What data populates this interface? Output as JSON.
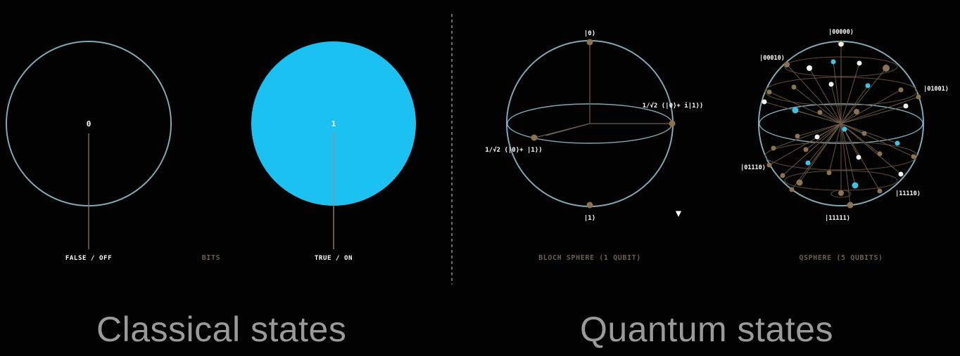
{
  "colors": {
    "background": "#020202",
    "circle_outline": "#7fa9b3",
    "bit_fill": "#1bc2f1",
    "stem": "#8a7a66",
    "node_brown": "#8b7253",
    "node_white": "#f2f2f2",
    "node_cyan": "#3bc4e6",
    "muted_label": "#6b5d4f",
    "caption": "#9a9a9a"
  },
  "classical": {
    "caption": "Classical states",
    "section_label": "BITS",
    "bit_off": {
      "value": "0",
      "label": "FALSE / OFF"
    },
    "bit_on": {
      "value": "1",
      "label": "TRUE / ON"
    }
  },
  "quantum": {
    "caption": "Quantum states",
    "bloch": {
      "section_label": "BLOCH SPHERE (1 QUBIT)",
      "top_ket": "|0⟩",
      "bottom_ket": "|1⟩",
      "right_state": "1/√2 (|0⟩+ i|1⟩)",
      "left_state": "1/√2 (|0⟩+ |1⟩)"
    },
    "qsphere": {
      "section_label": "QSPHERE (5 QUBITS)",
      "kets": [
        "|00000⟩",
        "|00010⟩",
        "|01001⟩",
        "|01110⟩",
        "|11110⟩",
        "|11111⟩"
      ]
    }
  }
}
